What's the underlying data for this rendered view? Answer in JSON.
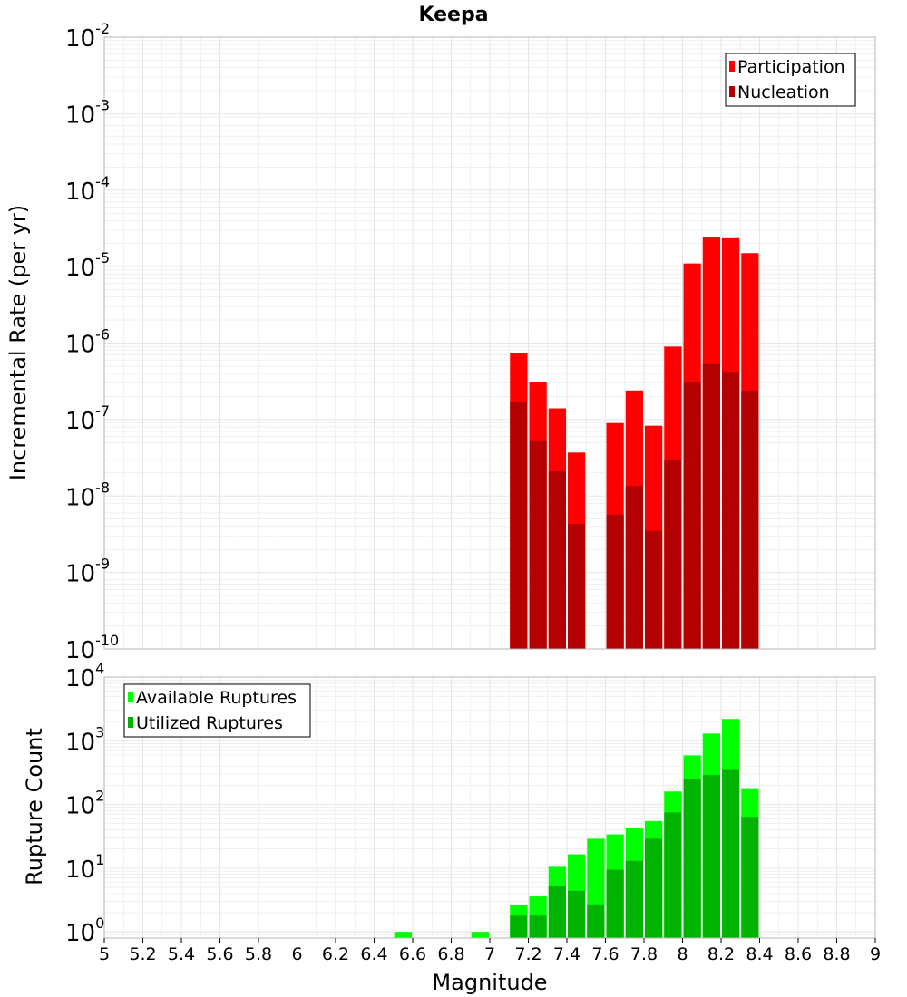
{
  "title": "Keepa",
  "xlabel": "Magnitude",
  "colors": {
    "participation": "#ff0000",
    "nucleation": "#b30000",
    "available": "#00ff00",
    "utilized": "#00b300",
    "grid": "#e6e6e6",
    "frame": "#b4b4b4"
  },
  "chart_data": [
    {
      "type": "bar",
      "ylabel": "Incremental Rate (per yr)",
      "yscale": "log",
      "ylim": [
        1e-10,
        0.01
      ],
      "xlim": [
        5,
        9
      ],
      "legend_position": "top-right",
      "x": [
        7.15,
        7.25,
        7.35,
        7.45,
        7.65,
        7.75,
        7.85,
        7.95,
        8.05,
        8.15,
        8.25,
        8.35
      ],
      "series": [
        {
          "name": "Participation",
          "values": [
            7.5e-07,
            3.1e-07,
            1.4e-07,
            3.7e-08,
            9e-08,
            2.4e-07,
            8.3e-08,
            9e-07,
            1.1e-05,
            2.4e-05,
            2.35e-05,
            1.5e-05
          ]
        },
        {
          "name": "Nucleation",
          "values": [
            1.7e-07,
            5.2e-08,
            2.1e-08,
            4.3e-09,
            5.7e-09,
            1.35e-08,
            3.5e-09,
            3e-08,
            3.1e-07,
            5.3e-07,
            4.2e-07,
            2.4e-07
          ]
        }
      ]
    },
    {
      "type": "bar",
      "ylabel": "Rupture Count",
      "yscale": "log",
      "ylim": [
        0.8,
        10000
      ],
      "xlim": [
        5,
        9
      ],
      "legend_position": "top-left",
      "x": [
        6.55,
        6.95,
        7.15,
        7.25,
        7.35,
        7.45,
        7.55,
        7.65,
        7.75,
        7.85,
        7.95,
        8.05,
        8.15,
        8.25,
        8.35
      ],
      "series": [
        {
          "name": "Available Ruptures",
          "values": [
            1,
            1,
            2.7,
            3.6,
            10.5,
            16.5,
            29,
            34,
            43,
            55,
            160,
            590,
            1300,
            2200,
            180
          ]
        },
        {
          "name": "Utilized Ruptures",
          "values": [
            0,
            0,
            1.8,
            1.8,
            5.3,
            4.4,
            2.7,
            9.5,
            13,
            29,
            75,
            250,
            290,
            360,
            64
          ]
        }
      ]
    }
  ],
  "x_ticks": [
    "5",
    "5.2",
    "5.4",
    "5.6",
    "5.8",
    "6",
    "6.2",
    "6.4",
    "6.6",
    "6.8",
    "7",
    "7.2",
    "7.4",
    "7.6",
    "7.8",
    "8",
    "8.2",
    "8.4",
    "8.6",
    "8.8",
    "9"
  ],
  "top_y_ticks": [
    {
      "base": "10",
      "exp": "-2"
    },
    {
      "base": "10",
      "exp": "-3"
    },
    {
      "base": "10",
      "exp": "-4"
    },
    {
      "base": "10",
      "exp": "-5"
    },
    {
      "base": "10",
      "exp": "-6"
    },
    {
      "base": "10",
      "exp": "-7"
    },
    {
      "base": "10",
      "exp": "-8"
    },
    {
      "base": "10",
      "exp": "-9"
    },
    {
      "base": "10",
      "exp": "-10"
    }
  ],
  "bottom_y_ticks": [
    {
      "base": "10",
      "exp": "4"
    },
    {
      "base": "10",
      "exp": "3"
    },
    {
      "base": "10",
      "exp": "2"
    },
    {
      "base": "10",
      "exp": "1"
    },
    {
      "base": "10",
      "exp": "0"
    }
  ]
}
